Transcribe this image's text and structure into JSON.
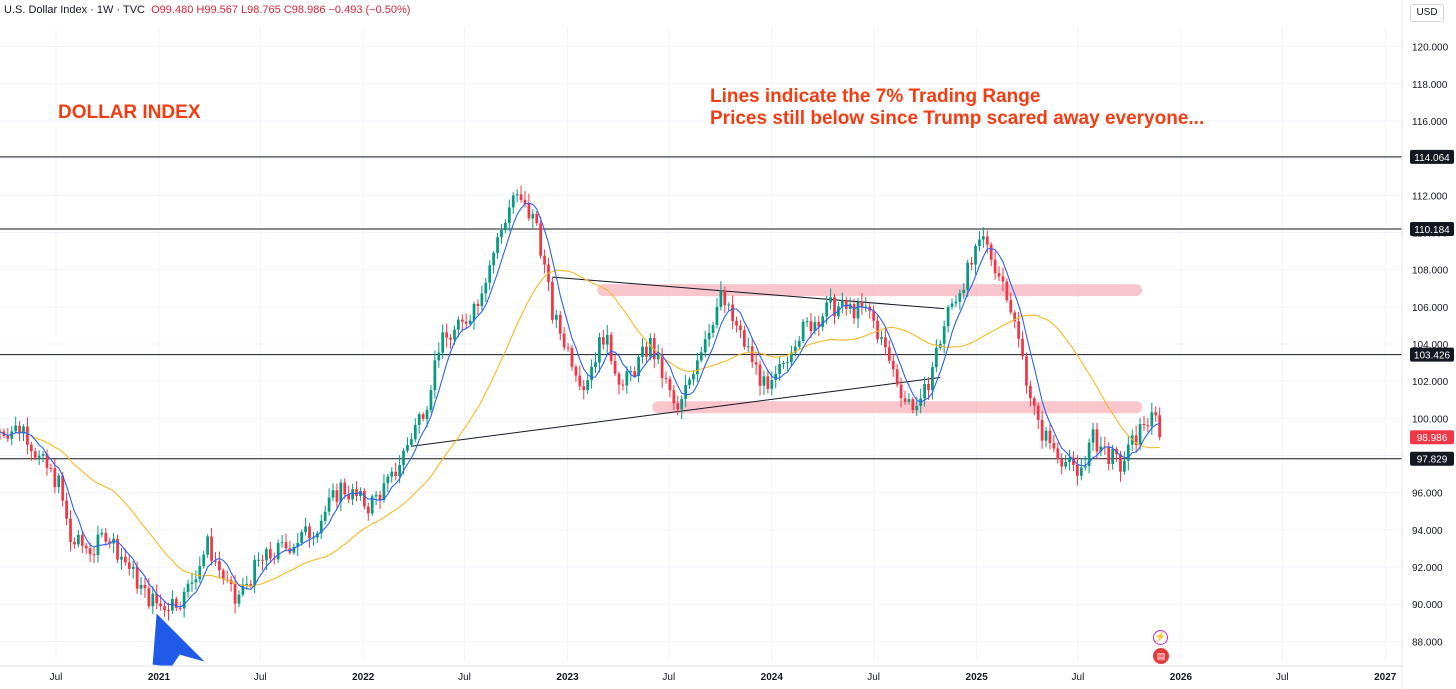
{
  "header": {
    "symbol": "U.S. Dollar Index · 1W · TVC",
    "ohlc": "O99.480  H99.567  L98.765  C98.986  −0.493 (−0.50%)"
  },
  "currency_button": "USD",
  "annotations": {
    "title": "DOLLAR INDEX",
    "note_line1": "Lines indicate the 7% Trading Range",
    "note_line2": "Prices still below since Trump scared away everyone..."
  },
  "icons": {
    "event_icon": "lightning-icon",
    "flag_icon": "us-flag-icon"
  },
  "colors": {
    "up": "#089981",
    "down": "#f23645",
    "ma_fast": "#2962ff",
    "ma_slow": "#f7b924",
    "annotation": "#f23d13",
    "zone": "#f6a9b4",
    "arrow": "#1f5ae8"
  },
  "chart_data": {
    "type": "candlestick",
    "interval": "1W",
    "ylim": [
      87.0,
      121.0
    ],
    "y_ticks": [
      "88.000",
      "90.000",
      "92.000",
      "94.000",
      "96.000",
      "98.000",
      "100.000",
      "102.000",
      "104.000",
      "106.000",
      "108.000",
      "110.000",
      "112.000",
      "114.000",
      "116.000",
      "118.000",
      "120.000"
    ],
    "x_ticks": [
      {
        "label": "Jul",
        "date": "2020-07-01"
      },
      {
        "label": "2021",
        "date": "2021-01-01"
      },
      {
        "label": "Jul",
        "date": "2021-07-01"
      },
      {
        "label": "2022",
        "date": "2022-01-01"
      },
      {
        "label": "Jul",
        "date": "2022-07-01"
      },
      {
        "label": "2023",
        "date": "2023-01-01"
      },
      {
        "label": "Jul",
        "date": "2023-07-01"
      },
      {
        "label": "2024",
        "date": "2024-01-01"
      },
      {
        "label": "Jul",
        "date": "2024-07-01"
      },
      {
        "label": "2025",
        "date": "2025-01-01"
      },
      {
        "label": "Jul",
        "date": "2025-07-01"
      },
      {
        "label": "2026",
        "date": "2026-01-01"
      },
      {
        "label": "Jul",
        "date": "2026-07-01"
      },
      {
        "label": "2027",
        "date": "2027-01-01"
      }
    ],
    "x_range": [
      "2020-03-23",
      "2027-01-31"
    ],
    "last_price": {
      "value": 98.986,
      "label": "98.986"
    },
    "horizontal_levels": [
      {
        "value": 114.064,
        "label": "114.064"
      },
      {
        "value": 110.184,
        "label": "110.184"
      },
      {
        "value": 103.426,
        "label": "103.426"
      },
      {
        "value": 97.829,
        "label": "97.829"
      }
    ],
    "trendlines": [
      {
        "from": [
          "2022-12-05",
          107.6
        ],
        "to": [
          "2024-11-04",
          105.9
        ]
      },
      {
        "from": [
          "2022-03-28",
          98.5
        ],
        "to": [
          "2024-10-28",
          102.2
        ]
      }
    ],
    "zones": [
      {
        "from": "2023-03-06",
        "to": "2025-10-13",
        "value": 106.9
      },
      {
        "from": "2023-06-12",
        "to": "2025-10-13",
        "value": 100.6
      }
    ],
    "arrow": {
      "date": "2021-01-04",
      "value": 89.6
    },
    "anchors": [
      [
        "2020-03-23",
        99.3
      ],
      [
        "2020-05-04",
        99.5
      ],
      [
        "2020-06-01",
        97.8
      ],
      [
        "2020-07-06",
        96.5
      ],
      [
        "2020-07-27",
        93.4
      ],
      [
        "2020-09-07",
        92.9
      ],
      [
        "2020-09-28",
        93.9
      ],
      [
        "2020-11-02",
        92.3
      ],
      [
        "2020-12-07",
        90.5
      ],
      [
        "2021-01-04",
        89.9
      ],
      [
        "2021-02-15",
        90.4
      ],
      [
        "2021-03-29",
        93.2
      ],
      [
        "2021-05-17",
        90.1
      ],
      [
        "2021-06-28",
        92.2
      ],
      [
        "2021-08-16",
        93.1
      ],
      [
        "2021-10-04",
        94.0
      ],
      [
        "2021-11-22",
        96.3
      ],
      [
        "2022-01-10",
        95.3
      ],
      [
        "2022-02-21",
        96.7
      ],
      [
        "2022-04-25",
        101.0
      ],
      [
        "2022-05-16",
        103.9
      ],
      [
        "2022-06-27",
        105.0
      ],
      [
        "2022-07-25",
        106.5
      ],
      [
        "2022-09-26",
        112.0
      ],
      [
        "2022-11-07",
        110.5
      ],
      [
        "2022-12-05",
        105.6
      ],
      [
        "2023-01-30",
        101.8
      ],
      [
        "2023-03-06",
        104.5
      ],
      [
        "2023-04-10",
        101.7
      ],
      [
        "2023-05-29",
        104.0
      ],
      [
        "2023-07-17",
        100.2
      ],
      [
        "2023-08-21",
        103.4
      ],
      [
        "2023-10-02",
        106.5
      ],
      [
        "2023-11-20",
        103.6
      ],
      [
        "2023-12-26",
        101.2
      ],
      [
        "2024-02-12",
        104.4
      ],
      [
        "2024-04-15",
        106.0
      ],
      [
        "2024-06-24",
        105.7
      ],
      [
        "2024-08-26",
        101.0
      ],
      [
        "2024-09-23",
        100.6
      ],
      [
        "2024-11-11",
        105.7
      ],
      [
        "2025-01-13",
        109.6
      ],
      [
        "2025-02-24",
        106.9
      ],
      [
        "2025-04-21",
        99.5
      ],
      [
        "2025-06-30",
        96.9
      ],
      [
        "2025-07-28",
        98.9
      ],
      [
        "2025-09-15",
        97.4
      ],
      [
        "2025-10-27",
        99.8
      ],
      [
        "2025-11-17",
        99.9
      ],
      [
        "2025-11-24",
        98.986
      ]
    ]
  }
}
